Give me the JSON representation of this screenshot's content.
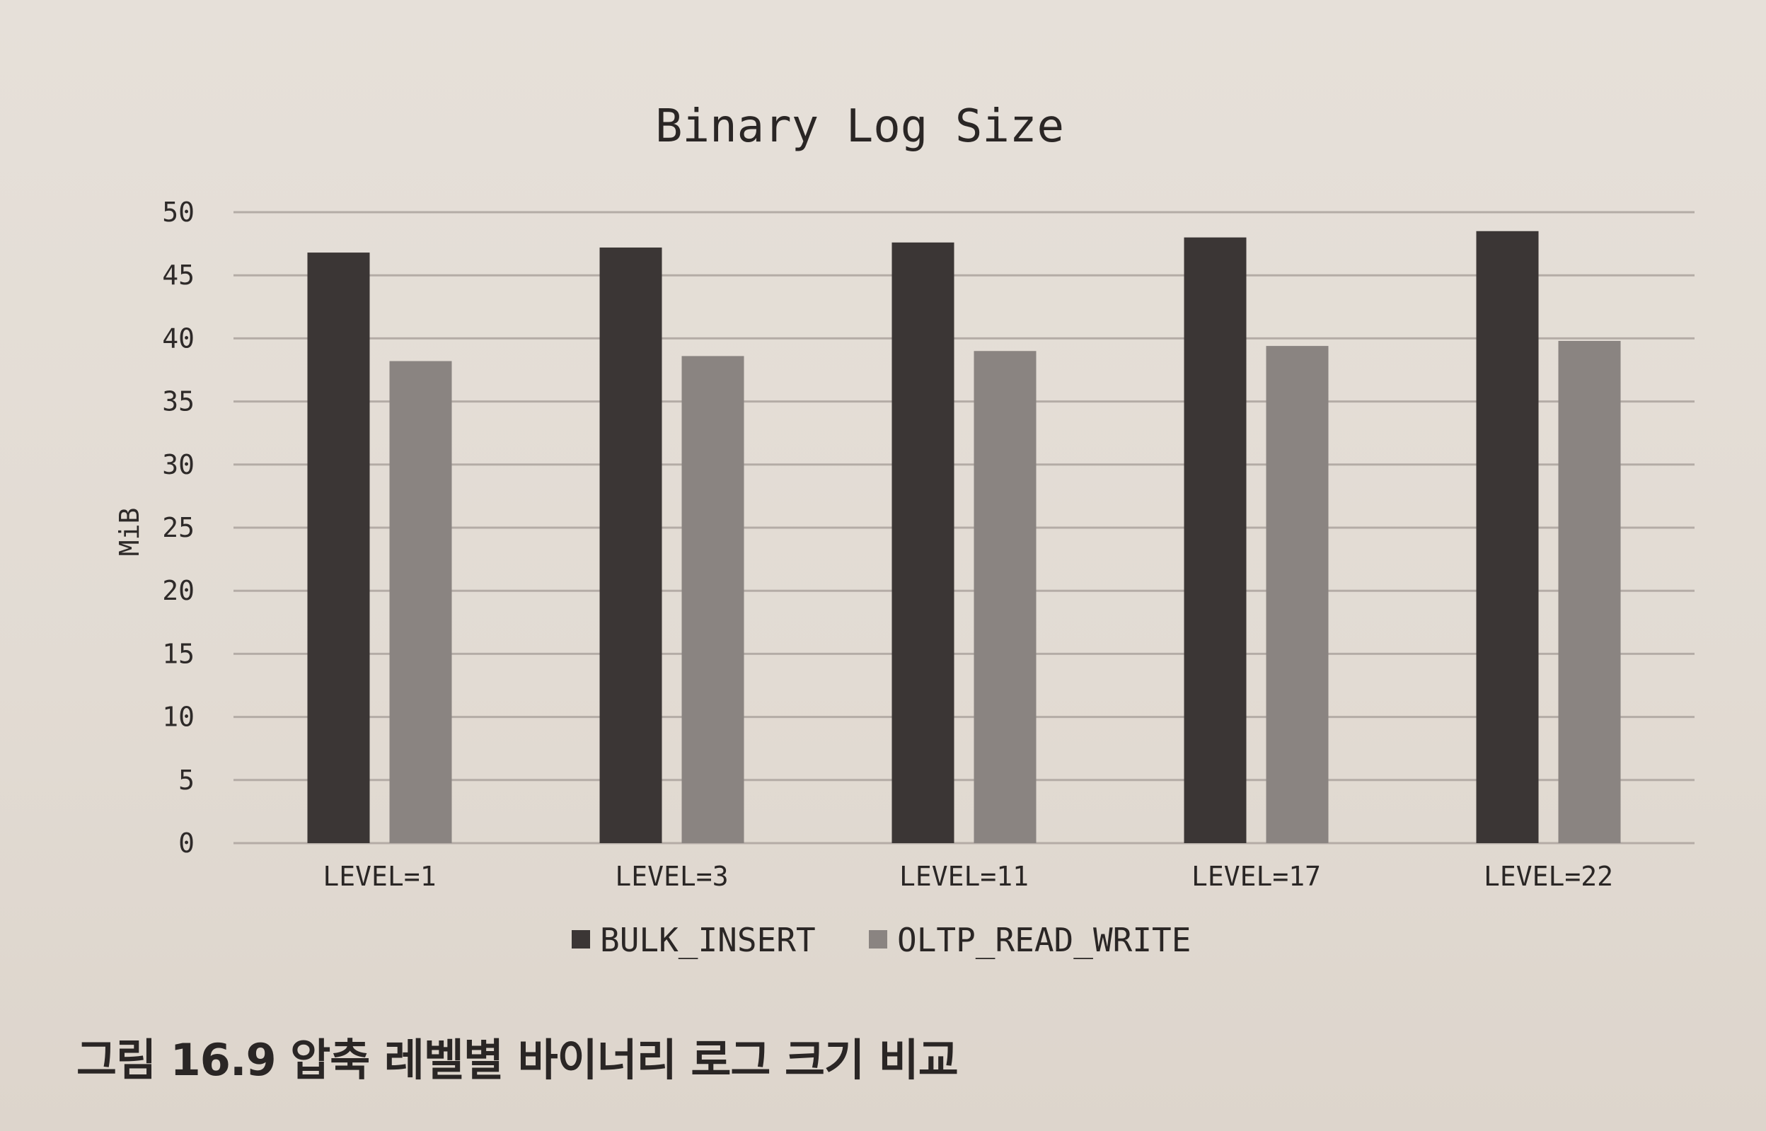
{
  "chart_data": {
    "type": "bar",
    "title": "Binary Log Size",
    "xlabel": "",
    "ylabel": "MiB",
    "ylim": [
      0,
      50
    ],
    "yticks": [
      0,
      5,
      10,
      15,
      20,
      25,
      30,
      35,
      40,
      45,
      50
    ],
    "categories": [
      "LEVEL=1",
      "LEVEL=3",
      "LEVEL=11",
      "LEVEL=17",
      "LEVEL=22"
    ],
    "series": [
      {
        "name": "BULK_INSERT",
        "color": "#3b3635",
        "values": [
          46.8,
          47.2,
          47.6,
          48.0,
          48.5
        ]
      },
      {
        "name": "OLTP_READ_WRITE",
        "color": "#8a8481",
        "values": [
          38.2,
          38.6,
          39.0,
          39.4,
          39.8
        ]
      }
    ],
    "grid": true,
    "legend_position": "bottom"
  },
  "caption": "그림 16.9 압축 레벨별 바이너리 로그 크기 비교"
}
